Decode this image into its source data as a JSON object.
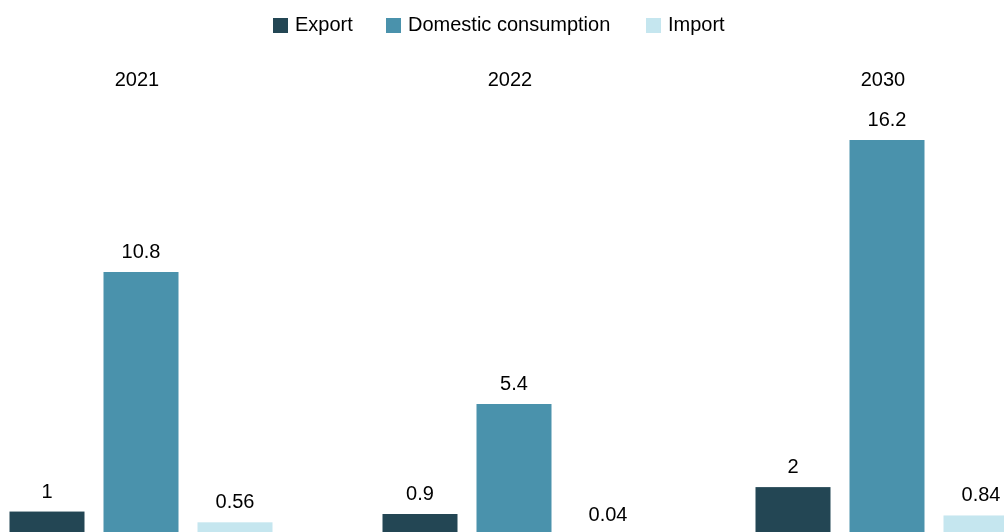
{
  "chart_data": {
    "type": "bar",
    "categories": [
      "2021",
      "2022",
      "2030"
    ],
    "series": [
      {
        "name": "Export",
        "color": "#234654",
        "values": [
          1,
          0.9,
          2
        ]
      },
      {
        "name": "Domestic consumption",
        "color": "#4a92ac",
        "values": [
          10.8,
          5.4,
          16.2
        ]
      },
      {
        "name": "Import",
        "color": "#c5e6ef",
        "values": [
          0.56,
          0.04,
          0.84
        ]
      }
    ],
    "data_labels": true,
    "legend": "top",
    "grid": false
  }
}
